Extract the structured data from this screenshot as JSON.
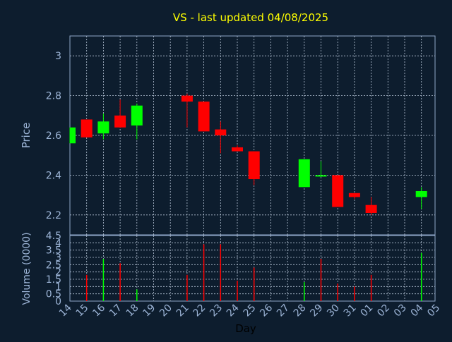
{
  "colors": {
    "background": "#0d1d2e",
    "plot_border": "#8fa6c8",
    "grid": "#b8c6d8",
    "title": "#ffff00",
    "tick_text": "#9cb4d6",
    "label_text": "#9cb4d6",
    "axis_title": "#000000",
    "up": "#00ff00",
    "down": "#ff0000"
  },
  "chart_data": [
    {
      "type": "candlestick",
      "title": "VS - last updated 04/08/2025",
      "ylabel": "Price",
      "ylim": [
        2.1,
        3.1
      ],
      "yticks": [
        2.2,
        2.4,
        2.6,
        2.8,
        3
      ],
      "ytick_labels": [
        "2.2",
        "2.4",
        "2.6",
        "2.8",
        "3"
      ],
      "grid": true,
      "x_tick_labels": [
        "14",
        "15",
        "16",
        "17",
        "18",
        "19",
        "20",
        "21",
        "22",
        "23",
        "24",
        "25",
        "26",
        "27",
        "28",
        "29",
        "30",
        "31",
        "01",
        "02",
        "03",
        "04",
        "05"
      ],
      "candles": [
        {
          "day": "14",
          "open": 2.56,
          "high": 2.64,
          "low": 2.56,
          "close": 2.64
        },
        {
          "day": "15",
          "open": 2.68,
          "high": 2.68,
          "low": 2.59,
          "close": 2.59
        },
        {
          "day": "16",
          "open": 2.61,
          "high": 2.71,
          "low": 2.58,
          "close": 2.67
        },
        {
          "day": "17",
          "open": 2.7,
          "high": 2.78,
          "low": 2.64,
          "close": 2.64
        },
        {
          "day": "18",
          "open": 2.65,
          "high": 2.76,
          "low": 2.58,
          "close": 2.75
        },
        {
          "day": "21",
          "open": 2.8,
          "high": 2.81,
          "low": 2.64,
          "close": 2.77
        },
        {
          "day": "22",
          "open": 2.77,
          "high": 2.77,
          "low": 2.62,
          "close": 2.62
        },
        {
          "day": "23",
          "open": 2.63,
          "high": 2.67,
          "low": 2.51,
          "close": 2.6
        },
        {
          "day": "24",
          "open": 2.54,
          "high": 2.55,
          "low": 2.52,
          "close": 2.52
        },
        {
          "day": "25",
          "open": 2.52,
          "high": 2.52,
          "low": 2.35,
          "close": 2.38
        },
        {
          "day": "28",
          "open": 2.34,
          "high": 2.48,
          "low": 2.34,
          "close": 2.48
        },
        {
          "day": "29",
          "open": 2.4,
          "high": 2.47,
          "low": 2.39,
          "close": 2.4
        },
        {
          "day": "30",
          "open": 2.4,
          "high": 2.4,
          "low": 2.24,
          "close": 2.24
        },
        {
          "day": "31",
          "open": 2.31,
          "high": 2.31,
          "low": 2.28,
          "close": 2.29
        },
        {
          "day": "01",
          "open": 2.25,
          "high": 2.29,
          "low": 2.2,
          "close": 2.21
        },
        {
          "day": "04",
          "open": 2.29,
          "high": 2.34,
          "low": 2.23,
          "close": 2.32
        }
      ]
    },
    {
      "type": "bar",
      "ylabel": "Volume (0000)",
      "xlabel": "Day",
      "ylim": [
        0,
        4.5
      ],
      "yticks": [
        0,
        0.5,
        1,
        1.5,
        2,
        2.5,
        3,
        3.5,
        4,
        4.5
      ],
      "ytick_labels": [
        "0",
        "0.5",
        "1",
        "1.5",
        "2",
        "2.5",
        "3",
        "3.5",
        "4",
        "4.5"
      ],
      "grid": true,
      "bars": [
        {
          "day": "14",
          "value": 0.0,
          "direction": "up"
        },
        {
          "day": "15",
          "value": 1.8,
          "direction": "down"
        },
        {
          "day": "16",
          "value": 2.9,
          "direction": "up"
        },
        {
          "day": "17",
          "value": 2.6,
          "direction": "down"
        },
        {
          "day": "18",
          "value": 0.8,
          "direction": "up"
        },
        {
          "day": "21",
          "value": 1.8,
          "direction": "down"
        },
        {
          "day": "22",
          "value": 3.9,
          "direction": "down"
        },
        {
          "day": "23",
          "value": 3.9,
          "direction": "down"
        },
        {
          "day": "24",
          "value": 1.4,
          "direction": "down"
        },
        {
          "day": "25",
          "value": 2.3,
          "direction": "down"
        },
        {
          "day": "28",
          "value": 1.3,
          "direction": "up"
        },
        {
          "day": "29",
          "value": 2.9,
          "direction": "down"
        },
        {
          "day": "30",
          "value": 1.2,
          "direction": "down"
        },
        {
          "day": "31",
          "value": 1.0,
          "direction": "down"
        },
        {
          "day": "01",
          "value": 1.8,
          "direction": "down"
        },
        {
          "day": "04",
          "value": 3.3,
          "direction": "up"
        }
      ]
    }
  ]
}
